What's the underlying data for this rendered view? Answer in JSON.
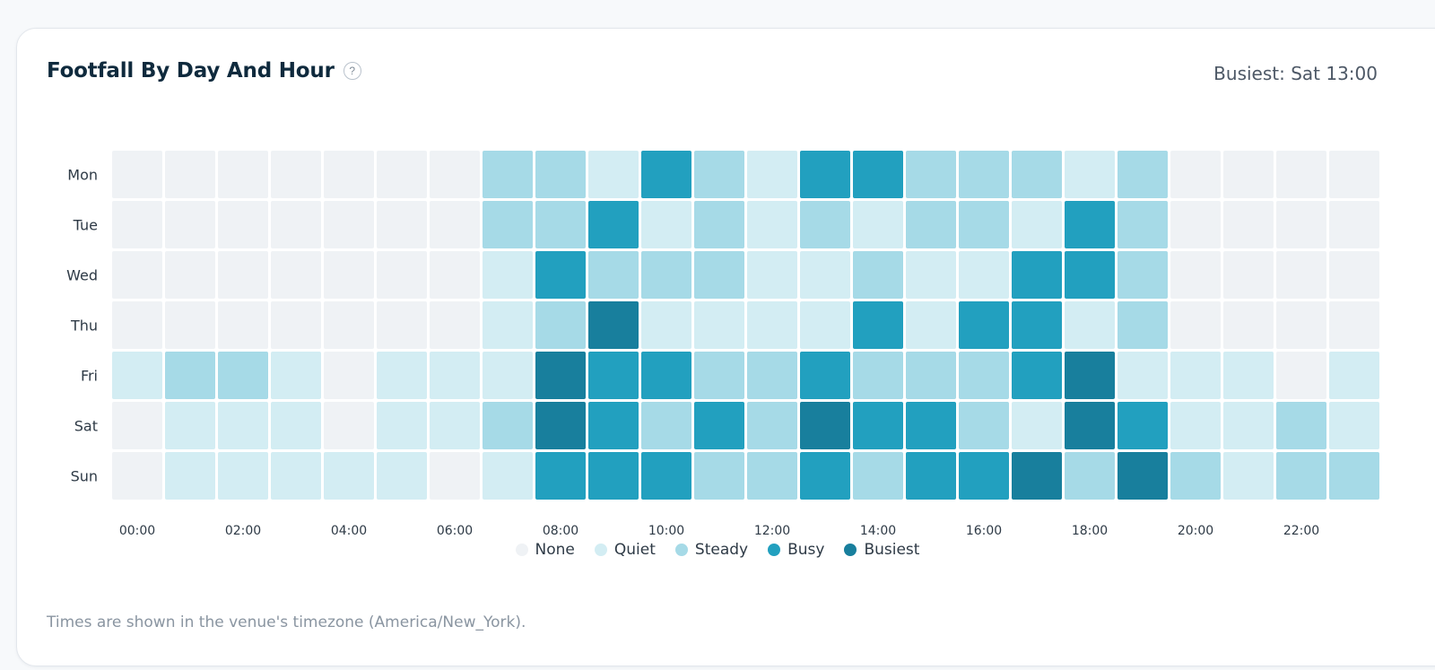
{
  "header": {
    "title": "Footfall By Day And Hour",
    "help_glyph": "?",
    "busiest_text": "Busiest: Sat 13:00"
  },
  "footer": {
    "note": "Times are shown in the venue's timezone (America/New_York)."
  },
  "legend": [
    {
      "label": "None",
      "color": "#eff2f5"
    },
    {
      "label": "Quiet",
      "color": "#d3edf3"
    },
    {
      "label": "Steady",
      "color": "#a6dae7"
    },
    {
      "label": "Busy",
      "color": "#22a0bf"
    },
    {
      "label": "Busiest",
      "color": "#187f9d"
    }
  ],
  "chart_data": {
    "type": "heatmap",
    "title": "Footfall By Day And Hour",
    "rows": [
      "Mon",
      "Tue",
      "Wed",
      "Thu",
      "Fri",
      "Sat",
      "Sun"
    ],
    "columns": [
      "00",
      "01",
      "02",
      "03",
      "04",
      "05",
      "06",
      "07",
      "08",
      "09",
      "10",
      "11",
      "12",
      "13",
      "14",
      "15",
      "16",
      "17",
      "18",
      "19",
      "20",
      "21",
      "22",
      "23"
    ],
    "x_tick_labels": [
      "00:00",
      "02:00",
      "04:00",
      "06:00",
      "08:00",
      "10:00",
      "12:00",
      "14:00",
      "16:00",
      "18:00",
      "20:00",
      "22:00"
    ],
    "levels": [
      "None",
      "Quiet",
      "Steady",
      "Busy",
      "Busiest"
    ],
    "values": [
      [
        0,
        0,
        0,
        0,
        0,
        0,
        0,
        2,
        2,
        1,
        3,
        2,
        1,
        3,
        3,
        2,
        2,
        2,
        1,
        2,
        0,
        0,
        0,
        0
      ],
      [
        0,
        0,
        0,
        0,
        0,
        0,
        0,
        2,
        2,
        3,
        1,
        2,
        1,
        2,
        1,
        2,
        2,
        1,
        3,
        2,
        0,
        0,
        0,
        0
      ],
      [
        0,
        0,
        0,
        0,
        0,
        0,
        0,
        1,
        3,
        2,
        2,
        2,
        1,
        1,
        2,
        1,
        1,
        3,
        3,
        2,
        0,
        0,
        0,
        0
      ],
      [
        0,
        0,
        0,
        0,
        0,
        0,
        0,
        1,
        2,
        4,
        1,
        1,
        1,
        1,
        3,
        1,
        3,
        3,
        1,
        2,
        0,
        0,
        0,
        0
      ],
      [
        1,
        2,
        2,
        1,
        0,
        1,
        1,
        1,
        4,
        3,
        3,
        2,
        2,
        3,
        2,
        2,
        2,
        3,
        4,
        1,
        1,
        1,
        0,
        1
      ],
      [
        0,
        1,
        1,
        1,
        0,
        1,
        1,
        2,
        4,
        3,
        2,
        3,
        2,
        4,
        3,
        3,
        2,
        1,
        4,
        3,
        1,
        1,
        2,
        1
      ],
      [
        0,
        1,
        1,
        1,
        1,
        1,
        0,
        1,
        3,
        3,
        3,
        2,
        2,
        3,
        2,
        3,
        3,
        4,
        2,
        4,
        2,
        1,
        2,
        2
      ]
    ]
  }
}
